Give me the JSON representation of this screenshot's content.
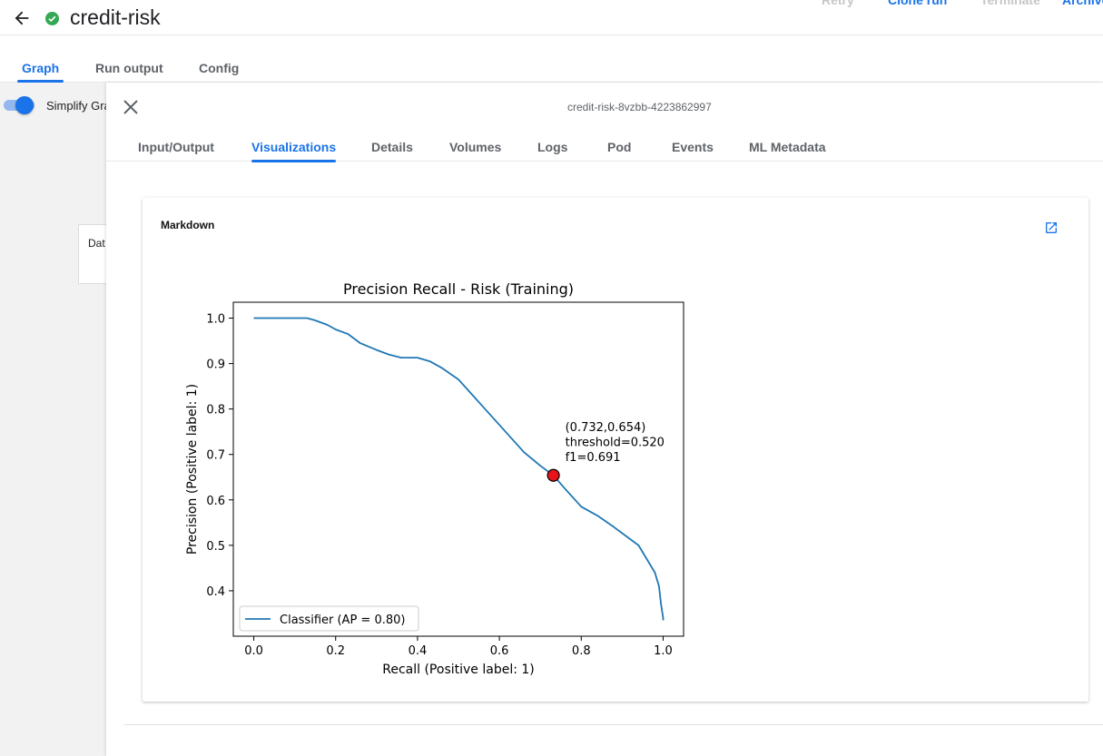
{
  "header": {
    "title": "credit-risk",
    "status_color": "#34a853",
    "actions": [
      "Retry",
      "Clone run",
      "Terminate",
      "Archive"
    ]
  },
  "main_tabs": [
    {
      "label": "Graph",
      "active": true
    },
    {
      "label": "Run output",
      "active": false
    },
    {
      "label": "Config",
      "active": false
    }
  ],
  "graph_pane": {
    "toggle_label": "Simplify Graph",
    "toggle_on": true,
    "node_label": "Dat"
  },
  "side_panel": {
    "pod_name": "credit-risk-8vzbb-4223862997",
    "tabs": [
      {
        "label": "Input/Output",
        "active": false
      },
      {
        "label": "Visualizations",
        "active": true
      },
      {
        "label": "Details",
        "active": false
      },
      {
        "label": "Volumes",
        "active": false
      },
      {
        "label": "Logs",
        "active": false
      },
      {
        "label": "Pod",
        "active": false
      },
      {
        "label": "Events",
        "active": false
      },
      {
        "label": "ML Metadata",
        "active": false
      }
    ],
    "card_title": "Markdown"
  },
  "colors": {
    "accent": "#1a73e8",
    "line": "#1f77b4",
    "marker": "#e8141b"
  },
  "chart_data": {
    "type": "line",
    "title": "Precision Recall - Risk (Training)",
    "xlabel": "Recall (Positive label: 1)",
    "ylabel": "Precision (Positive label: 1)",
    "xlim": [
      -0.05,
      1.05
    ],
    "ylim": [
      0.3,
      1.035
    ],
    "xticks": [
      "0.0",
      "0.2",
      "0.4",
      "0.6",
      "0.8",
      "1.0"
    ],
    "yticks": [
      "0.4",
      "0.5",
      "0.6",
      "0.7",
      "0.8",
      "0.9",
      "1.0"
    ],
    "series": [
      {
        "name": "Classifier (AP = 0.80)",
        "x": [
          0.0,
          0.05,
          0.1,
          0.13,
          0.15,
          0.18,
          0.2,
          0.23,
          0.26,
          0.3,
          0.33,
          0.36,
          0.4,
          0.43,
          0.46,
          0.5,
          0.53,
          0.56,
          0.6,
          0.63,
          0.66,
          0.7,
          0.732,
          0.76,
          0.8,
          0.84,
          0.88,
          0.91,
          0.94,
          0.96,
          0.98,
          0.99,
          0.995,
          1.0,
          1.0
        ],
        "y": [
          1.0,
          1.0,
          1.0,
          1.0,
          0.995,
          0.985,
          0.975,
          0.965,
          0.945,
          0.93,
          0.92,
          0.913,
          0.913,
          0.905,
          0.89,
          0.865,
          0.835,
          0.805,
          0.765,
          0.735,
          0.705,
          0.675,
          0.654,
          0.625,
          0.585,
          0.565,
          0.54,
          0.52,
          0.5,
          0.47,
          0.44,
          0.41,
          0.37,
          0.34,
          0.335
        ]
      }
    ],
    "highlight": {
      "x": 0.732,
      "y": 0.654
    },
    "annotation": [
      "(0.732,0.654)",
      "threshold=0.520",
      "f1=0.691"
    ],
    "legend": {
      "position": "lower-left"
    },
    "grid": false
  }
}
